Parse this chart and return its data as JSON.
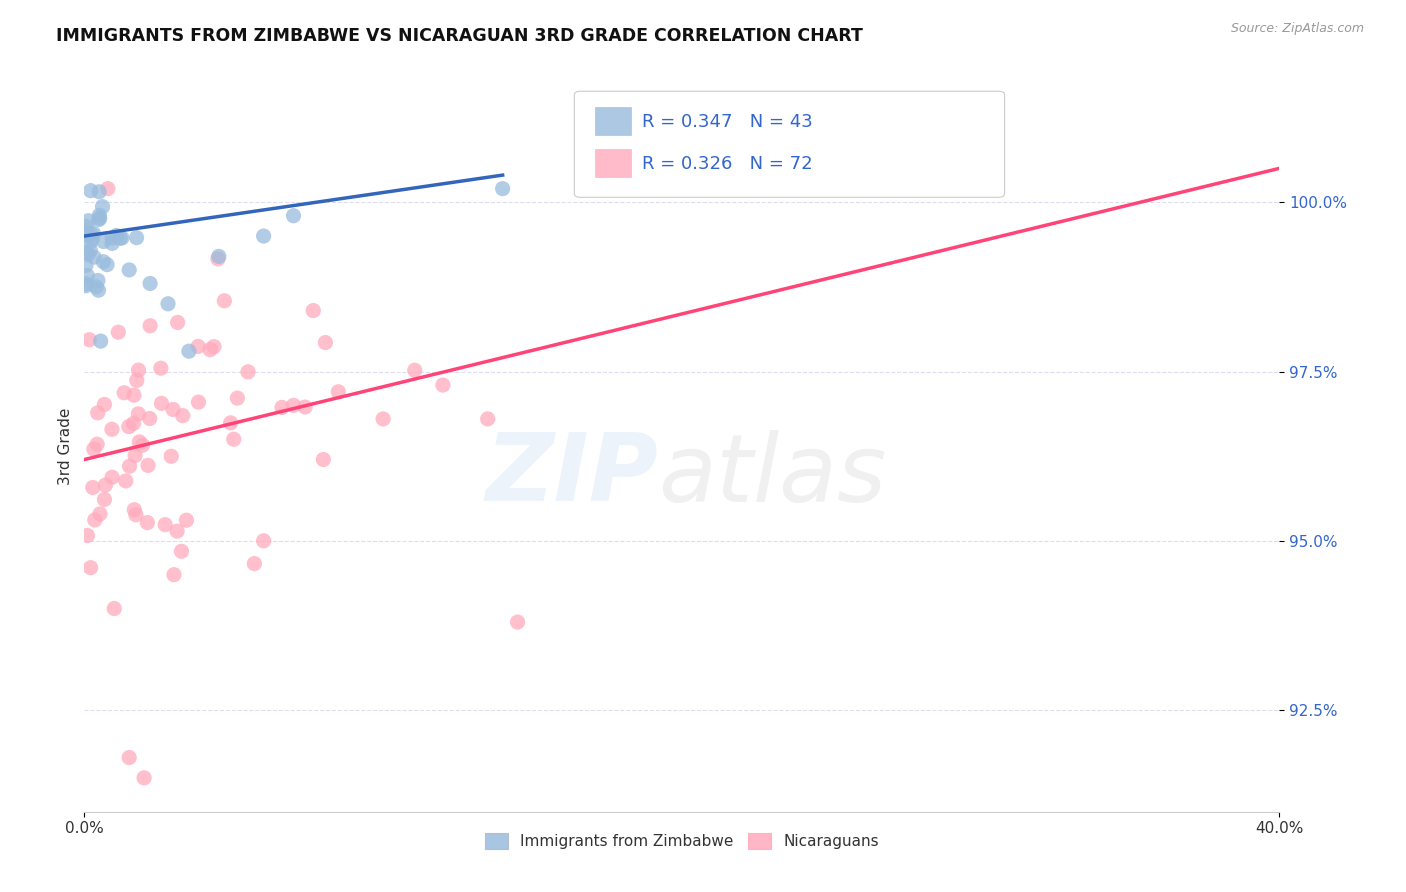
{
  "title": "IMMIGRANTS FROM ZIMBABWE VS NICARAGUAN 3RD GRADE CORRELATION CHART",
  "source_text": "Source: ZipAtlas.com",
  "ylabel": "3rd Grade",
  "y_tick_labels": [
    "92.5%",
    "95.0%",
    "97.5%",
    "100.0%"
  ],
  "y_tick_values": [
    92.5,
    95.0,
    97.5,
    100.0
  ],
  "x_range": [
    0.0,
    40.0
  ],
  "y_range": [
    91.0,
    101.8
  ],
  "legend_r1": "R = 0.347",
  "legend_n1": "N = 43",
  "legend_r2": "R = 0.326",
  "legend_n2": "N = 72",
  "blue_color": "#99BBDD",
  "pink_color": "#FFAABC",
  "blue_line_color": "#3366BB",
  "pink_line_color": "#FF4477",
  "legend_r_color": "#3366CC",
  "text_color": "#333333",
  "grid_color": "#DDDDEE",
  "source_color": "#999999",
  "blue_line_x": [
    0.0,
    14.0
  ],
  "blue_line_y": [
    99.5,
    100.4
  ],
  "pink_line_x": [
    0.0,
    40.0
  ],
  "pink_line_y": [
    96.2,
    100.5
  ]
}
